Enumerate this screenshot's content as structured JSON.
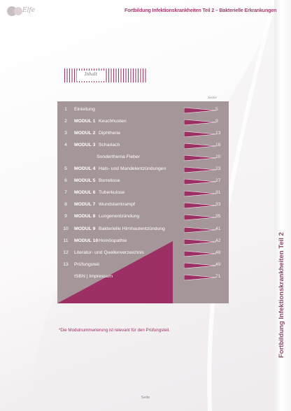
{
  "header": {
    "logo_text": "Elfe",
    "title": "Fortbildung Infektionskrankheiten Teil 2 – Bakterielle Erkrankungen",
    "vertical_title": "Fortbildung Infektionskrankheiten Teil 2"
  },
  "section": {
    "tab_label": "Inhalt",
    "page_column_label": "Seite"
  },
  "toc": [
    {
      "num": "1",
      "module": "",
      "title": "Einleitung",
      "page": "5"
    },
    {
      "num": "2",
      "module": "MODUL 1",
      "title": "Keuchhusten",
      "page": "9"
    },
    {
      "num": "3",
      "module": "MODUL 2",
      "title": "Diphtherie",
      "page": "13"
    },
    {
      "num": "4",
      "module": "MODUL 3",
      "title": "Scharlach",
      "page": "16"
    },
    {
      "num": "",
      "module": "",
      "title": "Sonderthema Fieber",
      "page": "20"
    },
    {
      "num": "5",
      "module": "MODUL 4",
      "title": "Hals- und Mandelentzündungen",
      "page": "23"
    },
    {
      "num": "6",
      "module": "MODUL 5",
      "title": "Borreliose",
      "page": "27"
    },
    {
      "num": "7",
      "module": "MODUL 6",
      "title": "Tuberkulose",
      "page": "31"
    },
    {
      "num": "8",
      "module": "MODUL 7",
      "title": "Wundstarrkrampf",
      "page": "33"
    },
    {
      "num": "9",
      "module": "MODUL 8",
      "title": "Lungenentzündung",
      "page": "35"
    },
    {
      "num": "10",
      "module": "MODUL 9",
      "title": "Bakterielle Hirnhautentzündung",
      "page": "41"
    },
    {
      "num": "11",
      "module": "MODUL 10",
      "title": "Homöopathie",
      "page": "42"
    },
    {
      "num": "12",
      "module": "",
      "title": "Literatur- und Quellenverzeichnis",
      "page": "48"
    },
    {
      "num": "13",
      "module": "",
      "title": "Prüfungsteil",
      "page": "49"
    },
    {
      "num": "",
      "module": "",
      "title": "ISBN | Impressum",
      "page": "71"
    }
  ],
  "footnote": "*Die Modulnummerierung ist relevant für den Prüfungsteil.",
  "footer": {
    "page_label": "Seite"
  },
  "colors": {
    "accent": "#9c2f63",
    "box": "#a59799",
    "header_text": "#a4416f"
  }
}
